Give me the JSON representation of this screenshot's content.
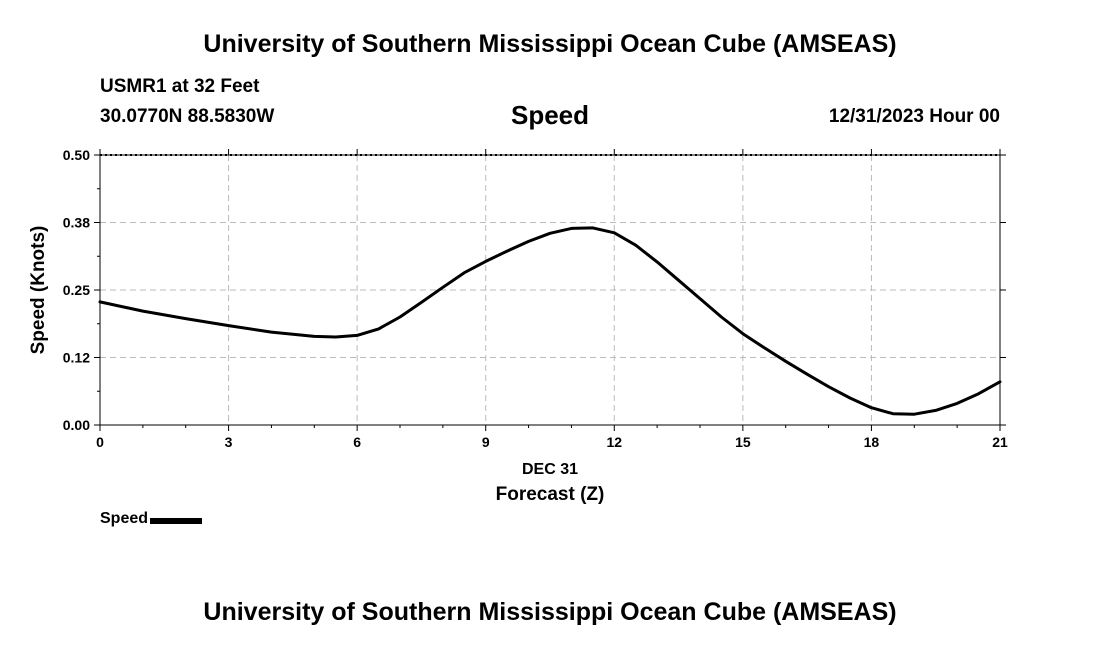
{
  "header": {
    "title_top": "University of Southern Mississippi Ocean Cube (AMSEAS)",
    "title_bottom": "University of Southern Mississippi Ocean Cube (AMSEAS)"
  },
  "station": {
    "name": "USMR1 at 32 Feet",
    "coords": "30.0770N  88.5830W",
    "datetime": "12/31/2023 Hour 00"
  },
  "colors": {
    "line": "#000000",
    "grid": "#bbbbbb"
  },
  "chart_data": {
    "type": "line",
    "title": "Speed",
    "xlabel": "Forecast (Z)",
    "xsublabel": "DEC 31",
    "ylabel": "Speed (Knots)",
    "xlim": [
      0,
      21
    ],
    "ylim": [
      0,
      0.5
    ],
    "xticks": [
      0,
      3,
      6,
      9,
      12,
      15,
      18,
      21
    ],
    "yticks": [
      0.0,
      0.125,
      0.25,
      0.375,
      0.5
    ],
    "ytick_labels": [
      "0.00",
      "0.12",
      "0.25",
      "0.38",
      "0.50"
    ],
    "grid": true,
    "legend_position": "bottom-left",
    "series": [
      {
        "name": "Speed",
        "x": [
          0,
          1,
          2,
          3,
          4,
          5,
          5.5,
          6,
          6.5,
          7,
          7.5,
          8,
          8.5,
          9,
          9.5,
          10,
          10.5,
          11,
          11.5,
          12,
          12.5,
          13,
          13.5,
          14,
          14.5,
          15,
          15.5,
          16,
          16.5,
          17,
          17.5,
          18,
          18.5,
          19,
          19.5,
          20,
          20.5,
          21
        ],
        "y": [
          0.228,
          0.211,
          0.197,
          0.184,
          0.172,
          0.164,
          0.163,
          0.166,
          0.178,
          0.2,
          0.227,
          0.255,
          0.282,
          0.303,
          0.322,
          0.34,
          0.355,
          0.364,
          0.365,
          0.356,
          0.333,
          0.302,
          0.268,
          0.234,
          0.2,
          0.169,
          0.143,
          0.118,
          0.094,
          0.071,
          0.05,
          0.032,
          0.021,
          0.02,
          0.027,
          0.04,
          0.058,
          0.08
        ]
      }
    ]
  }
}
